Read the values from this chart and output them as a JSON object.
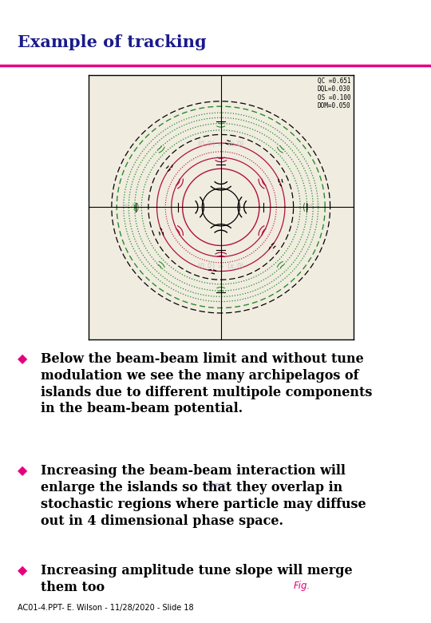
{
  "title": "Example of tracking",
  "title_color": "#1a1a8c",
  "title_fontsize": 15,
  "underline_color": "#e6007e",
  "bg_color": "#ffffff",
  "bullet_color": "#e6007e",
  "bullet_char": "◆",
  "bullets": [
    "Below the beam-beam limit and without tune\nmodulation we see the many archipelagos of\nislands due to different multipole components\nin the beam-beam potential.",
    "Increasing the beam-beam interaction will\nenlarge the islands so that they overlap in\nstochastic regions where particle may diffuse\nout in 4 dimensional phase space.",
    "Increasing amplitude tune slope will merge\nthem too"
  ],
  "footer": "AC01-4.PPT- E. Wilson - 11/28/2020 - Slide 18",
  "footer_fontsize": 7,
  "fig_label": "Fig.",
  "fig_label_color": "#e6007e",
  "plot_params_text": "QC =0.651\nDQL=0.030\nOS =0.100\nDOM=0.050",
  "plot_bg": "#f0ece0",
  "text_color": "#000000",
  "bullet_fontsize": 11.5
}
